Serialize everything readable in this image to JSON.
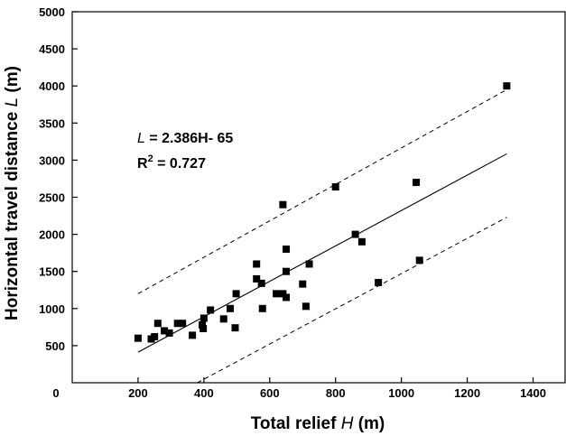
{
  "chart_data": {
    "type": "scatter",
    "xlabel_prefix": "Total relief ",
    "xlabel_var": "H",
    "xlabel_suffix": " (m)",
    "ylabel_prefix": "Horizontal travel distance ",
    "ylabel_var": "L",
    "ylabel_suffix": " (m)",
    "xlim": [
      0,
      1500
    ],
    "ylim": [
      0,
      5000
    ],
    "x_ticks": [
      200,
      400,
      600,
      800,
      1000,
      1200,
      1400
    ],
    "y_ticks": [
      500,
      1000,
      1500,
      2000,
      2500,
      3000,
      3500,
      4000,
      4500,
      5000
    ],
    "origin_label": "0",
    "grid": false,
    "equation_var": "L",
    "equation_rest": " = 2.386H- 65",
    "r2_label": "R",
    "r2_sup": "2",
    "r2_value": " = 0.727",
    "fit": {
      "slope": 2.386,
      "intercept": -65,
      "x_range": [
        200,
        1320
      ]
    },
    "upper_bound": {
      "x_range": [
        200,
        1320
      ],
      "y_range": [
        1200,
        3950
      ]
    },
    "lower_bound": {
      "x_range": [
        380,
        1320
      ],
      "y_range": [
        0,
        2230
      ]
    },
    "points": [
      {
        "x": 200,
        "y": 600
      },
      {
        "x": 240,
        "y": 590
      },
      {
        "x": 250,
        "y": 620
      },
      {
        "x": 260,
        "y": 800
      },
      {
        "x": 280,
        "y": 700
      },
      {
        "x": 295,
        "y": 670
      },
      {
        "x": 320,
        "y": 800
      },
      {
        "x": 335,
        "y": 800
      },
      {
        "x": 365,
        "y": 640
      },
      {
        "x": 395,
        "y": 780
      },
      {
        "x": 398,
        "y": 730
      },
      {
        "x": 400,
        "y": 870
      },
      {
        "x": 420,
        "y": 980
      },
      {
        "x": 460,
        "y": 860
      },
      {
        "x": 480,
        "y": 1000
      },
      {
        "x": 495,
        "y": 740
      },
      {
        "x": 498,
        "y": 1200
      },
      {
        "x": 560,
        "y": 1600
      },
      {
        "x": 560,
        "y": 1400
      },
      {
        "x": 575,
        "y": 1340
      },
      {
        "x": 578,
        "y": 1000
      },
      {
        "x": 620,
        "y": 1200
      },
      {
        "x": 640,
        "y": 2400
      },
      {
        "x": 640,
        "y": 1200
      },
      {
        "x": 650,
        "y": 1800
      },
      {
        "x": 650,
        "y": 1500
      },
      {
        "x": 650,
        "y": 1150
      },
      {
        "x": 700,
        "y": 1330
      },
      {
        "x": 710,
        "y": 1030
      },
      {
        "x": 720,
        "y": 1600
      },
      {
        "x": 800,
        "y": 2640
      },
      {
        "x": 860,
        "y": 2000
      },
      {
        "x": 880,
        "y": 1900
      },
      {
        "x": 930,
        "y": 1350
      },
      {
        "x": 1045,
        "y": 2700
      },
      {
        "x": 1055,
        "y": 1650
      },
      {
        "x": 1320,
        "y": 4000
      }
    ]
  }
}
